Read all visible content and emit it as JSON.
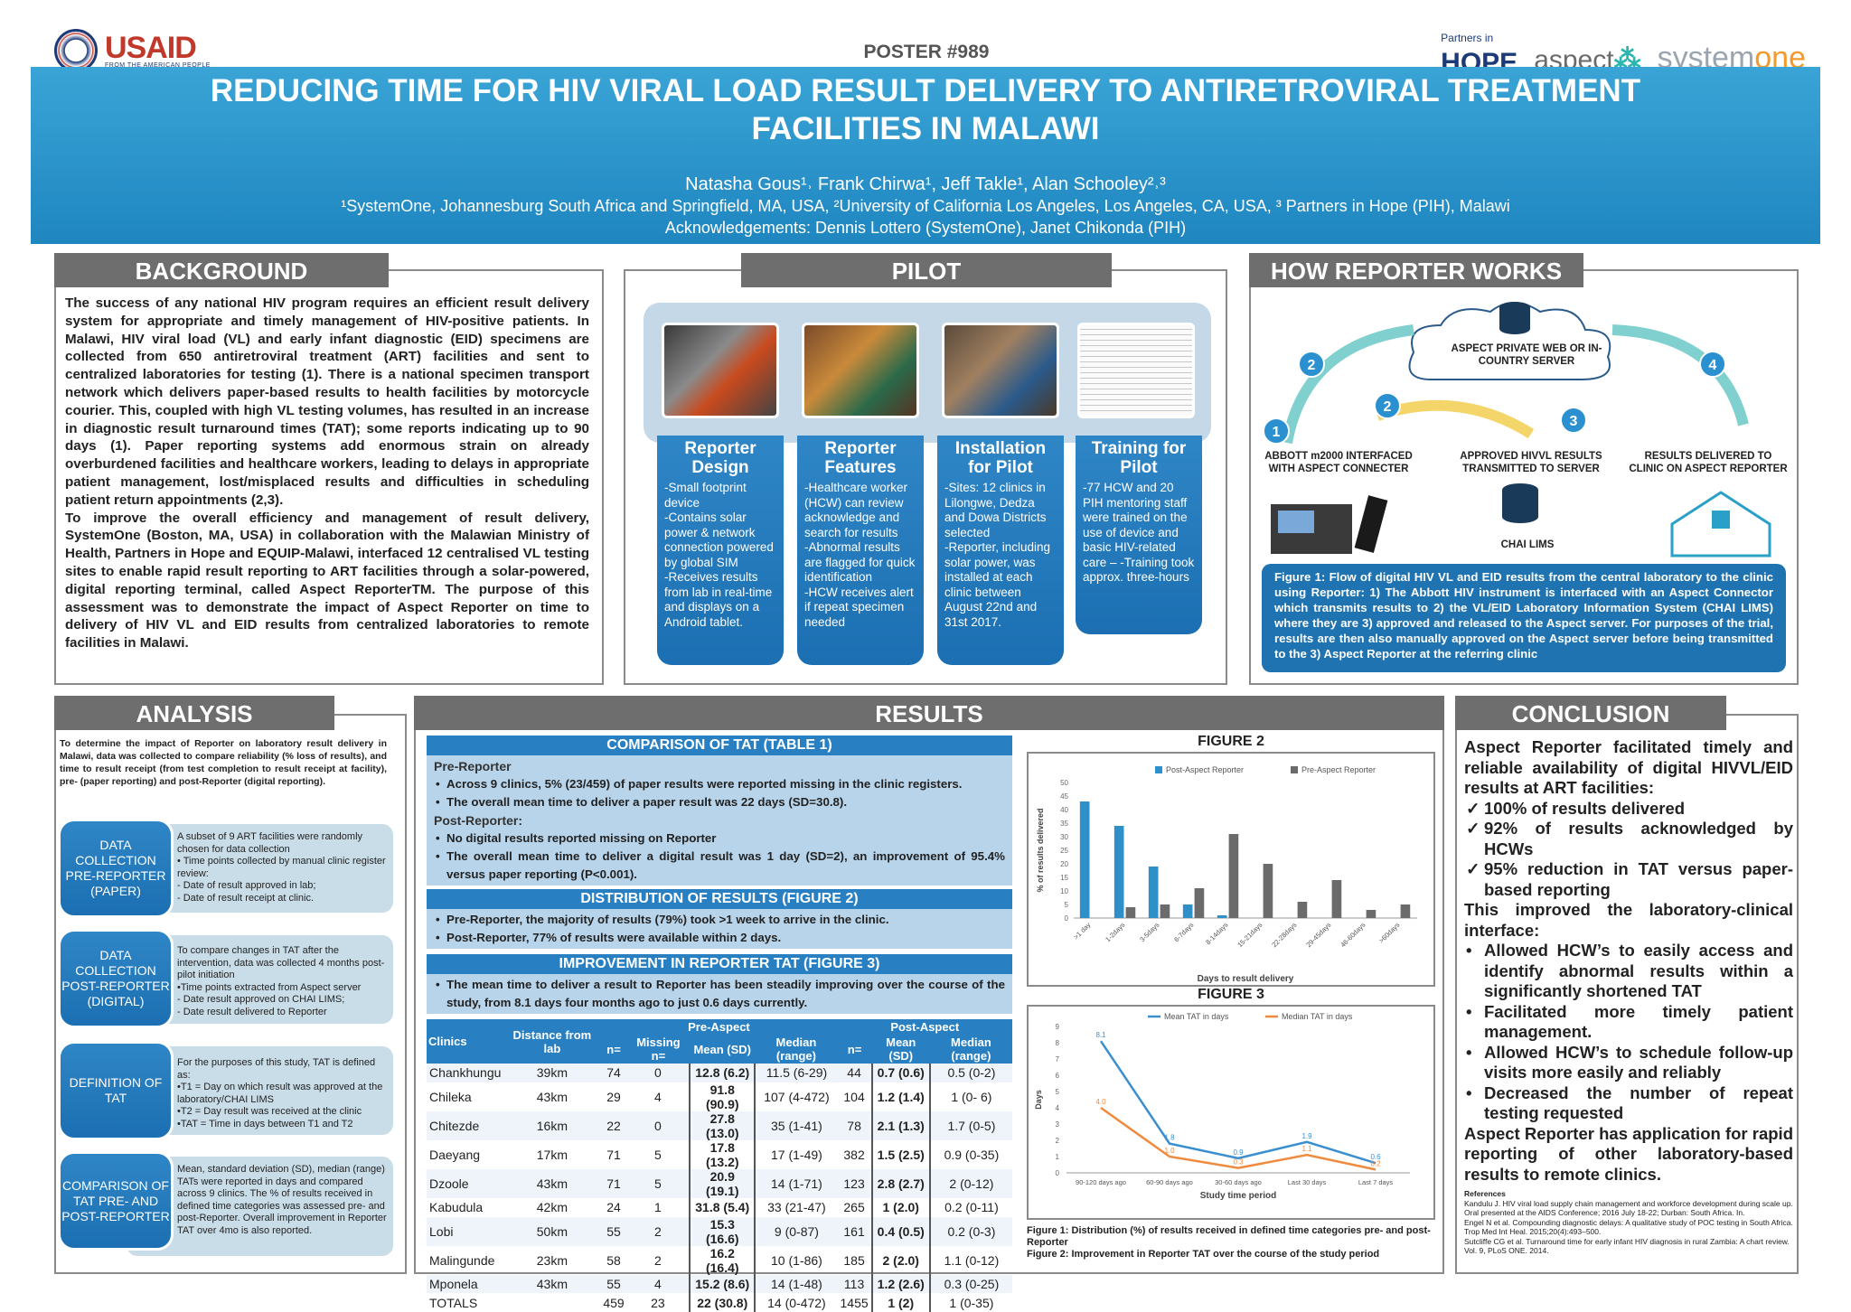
{
  "header": {
    "usaid_logo": "USAID",
    "usaid_tagline": "FROM THE AMERICAN PEOPLE",
    "poster_number": "POSTER #989",
    "pih_logo_small": "Partners in",
    "pih_logo": "HOPE",
    "aspect_logo": "aspect",
    "systemone_logo_a": "system",
    "systemone_logo_b": "one",
    "title_line1": "REDUCING TIME FOR HIV VIRAL LOAD RESULT DELIVERY TO ANTIRETROVIRAL TREATMENT",
    "title_line2": "FACILITIES IN MALAWI",
    "authors": "Natasha Gous¹˒ Frank Chirwa¹, Jeff Takle¹, Alan Schooley²˒³",
    "affiliations": "¹SystemOne, Johannesburg South Africa and Springfield, MA, USA, ²University of California Los Angeles, Los Angeles, CA, USA, ³ Partners in Hope (PIH), Malawi",
    "acknowledgements": "Acknowledgements: Dennis Lottero (SystemOne), Janet Chikonda (PIH)"
  },
  "background": {
    "heading": "BACKGROUND",
    "p1": "The success of any national HIV program requires an efficient result delivery system for appropriate and timely management of HIV-positive patients. In Malawi, HIV viral load (VL) and early infant diagnostic (EID) specimens are collected from 650 antiretroviral treatment (ART) facilities and sent to centralized laboratories for testing (1). There is a national specimen transport network which delivers paper-based results to health facilities by motorcycle courier. This, coupled with high VL testing volumes, has resulted in an increase in diagnostic result turnaround times (TAT); some reports indicating up to 90 days (1). Paper reporting systems add enormous strain on already overburdened facilities and healthcare workers, leading to delays in appropriate patient management, lost/misplaced results and difficulties in scheduling patient return appointments (2,3).",
    "p2": "To improve the overall efficiency and management of result delivery, SystemOne (Boston, MA, USA) in collaboration with the Malawian Ministry of Health, Partners in Hope and EQUIP-Malawi, interfaced 12 centralised VL testing sites to enable rapid result reporting to ART facilities through a solar-powered, digital reporting terminal, called Aspect ReporterTM. The purpose of this assessment was to demonstrate the impact of Aspect Reporter on time to delivery of HIV VL and EID results from centralized laboratories to remote facilities in Malawi."
  },
  "pilot": {
    "heading": "PILOT",
    "columns": [
      {
        "title": "Reporter Design",
        "text": "-Small footprint device\n-Contains solar power & network connection powered by global SIM\n-Receives results from lab in real-time and displays on a Android tablet."
      },
      {
        "title": "Reporter Features",
        "text": "-Healthcare worker (HCW) can review acknowledge and search for results\n-Abnormal results are flagged for quick identification\n-HCW receives alert if repeat specimen needed"
      },
      {
        "title": "Installation for Pilot",
        "text": "-Sites: 12 clinics in Lilongwe, Dedza and Dowa Districts selected\n-Reporter, including solar power, was installed at each clinic between August 22nd and 31st 2017."
      },
      {
        "title": "Training for Pilot",
        "text": "-77 HCW and 20 PIH mentoring staff were trained on the use of device and basic HIV-related care – -Training took approx. three-hours"
      }
    ]
  },
  "how": {
    "heading": "HOW REPORTER WORKS",
    "cloud": "ASPECT PRIVATE WEB OR IN-COUNTRY SERVER",
    "step1": "ABBOTT m2000 INTERFACED WITH ASPECT CONNECTER",
    "step3": "APPROVED HIVVL RESULTS TRANSMITTED TO SERVER",
    "step4": "RESULTS DELIVERED TO CLINIC ON ASPECT REPORTER",
    "chai": "CHAI LIMS",
    "n1": "1",
    "n2": "2",
    "n3": "3",
    "n4": "4",
    "caption": "Figure 1: Flow of digital HIV VL and EID results from the central laboratory to the clinic using Reporter: 1) The Abbott HIV instrument is interfaced with an Aspect Connector which transmits results to 2) the VL/EID Laboratory Information System (CHAI LIMS) where they are 3) approved and released to the Aspect server. For purposes of the trial, results are then also manually approved on the Aspect server before being transmitted to the 3) Aspect Reporter at the referring clinic"
  },
  "analysis": {
    "heading": "ANALYSIS",
    "intro": "To determine the impact of Reporter on laboratory result delivery in Malawi, data was collected to compare reliability (% loss of results), and time to result receipt (from test completion to result receipt at facility), pre- (paper reporting) and post-Reporter (digital reporting).",
    "rows": [
      {
        "label": "DATA COLLECTION PRE-REPORTER (PAPER)",
        "text": "A subset of 9 ART facilities were randomly chosen for data collection\n• Time points collected by manual clinic register review:\n  - Date of result approved in lab;\n  - Date of result receipt at clinic."
      },
      {
        "label": "DATA COLLECTION POST-REPORTER (DIGITAL)",
        "text": "To compare changes in TAT after the intervention, data was collected 4 months post-pilot initiation\n•Time points extracted from Aspect server\n  - Date result approved on CHAI LIMS;\n  - Date result delivered to Reporter"
      },
      {
        "label": "DEFINITION OF TAT",
        "text": "For the purposes of this study, TAT is defined as:\n•T1 = Day on which result was approved at the laboratory/CHAI LIMS\n•T2 = Day result was received at the clinic\n•TAT = Time in days between T1 and T2"
      },
      {
        "label": "COMPARISON OF TAT PRE- AND POST-REPORTER",
        "text": "Mean, standard deviation (SD), median (range) TATs were reported in days and compared across 9 clinics. The % of results received in defined time categories was assessed pre- and post-Reporter. Overall improvement in Reporter TAT over 4mo is also reported."
      }
    ]
  },
  "results": {
    "heading": "RESULTS",
    "comparison_title": "COMPARISON OF TAT (TABLE 1)",
    "pre_label": "Pre-Reporter",
    "pre_b1": "Across 9 clinics, 5% (23/459) of paper results were reported missing in the clinic registers.",
    "pre_b2": "The overall mean time to deliver a paper result was 22 days (SD=30.8).",
    "post_label": "Post-Reporter:",
    "post_b1": "No digital results reported missing on Reporter",
    "post_b2": "The overall mean time to deliver a digital result was 1 day (SD=2), an improvement of 95.4% versus paper reporting (P<0.001).",
    "dist_title": "DISTRIBUTION OF RESULTS (FIGURE 2)",
    "dist_b1": "Pre-Reporter, the majority of results (79%) took >1 week to arrive in the clinic.",
    "dist_b2": "Post-Reporter, 77% of results were available within 2 days.",
    "imp_title": "IMPROVEMENT IN REPORTER TAT (FIGURE 3)",
    "imp_b1": "The mean time to deliver a result to Reporter has been steadily improving over the course of the study, from 8.1 days four months ago to just 0.6 days currently.",
    "table_head": {
      "clinics": "Clinics",
      "distance": "Distance from lab",
      "pre": "Pre-Aspect",
      "post": "Post-Aspect",
      "n": "n=",
      "missing": "Missing n=",
      "mean": "Mean (SD)",
      "median": "Median (range)"
    },
    "table_rows": [
      [
        "Chankhungu",
        "39km",
        "74",
        "0",
        "12.8 (6.2)",
        "11.5 (6-29)",
        "44",
        "0.7 (0.6)",
        "0.5 (0-2)"
      ],
      [
        "Chileka",
        "43km",
        "29",
        "4",
        "91.8 (90.9)",
        "107 (4-472)",
        "104",
        "1.2 (1.4)",
        "1 (0- 6)"
      ],
      [
        "Chitezde",
        "16km",
        "22",
        "0",
        "27.8 (13.0)",
        "35 (1-41)",
        "78",
        "2.1 (1.3)",
        "1.7 (0-5)"
      ],
      [
        "Daeyang",
        "17km",
        "71",
        "5",
        "17.8 (13.2)",
        "17 (1-49)",
        "382",
        "1.5 (2.5)",
        "0.9 (0-35)"
      ],
      [
        "Dzoole",
        "43km",
        "71",
        "5",
        "20.9 (19.1)",
        "14 (1-71)",
        "123",
        "2.8 (2.7)",
        "2 (0-12)"
      ],
      [
        "Kabudula",
        "42km",
        "24",
        "1",
        "31.8 (5.4)",
        "33 (21-47)",
        "265",
        "1 (2.0)",
        "0.2 (0-11)"
      ],
      [
        "Lobi",
        "50km",
        "55",
        "2",
        "15.3 (16.6)",
        "9 (0-87)",
        "161",
        "0.4 (0.5)",
        "0.2 (0-3)"
      ],
      [
        "Malingunde",
        "23km",
        "58",
        "2",
        "16.2 (16.4)",
        "10 (1-86)",
        "185",
        "2 (2.0)",
        "1.1 (0-12)"
      ],
      [
        "Mponela",
        "43km",
        "55",
        "4",
        "15.2 (8.6)",
        "14 (1-48)",
        "113",
        "1.2 (2.6)",
        "0.3 (0-25)"
      ],
      [
        "TOTALS",
        "",
        "459",
        "23",
        "22 (30.8)",
        "14 (0-472)",
        "1455",
        "1 (2)",
        "1 (0-35)"
      ]
    ],
    "fig2_title": "FIGURE 2",
    "fig3_title": "FIGURE 3",
    "fig_caption1": "Figure 1: Distribution (%) of results received in defined time categories pre- and post-Reporter",
    "fig_caption2": "Figure 2: Improvement in Reporter TAT over the course of the study period"
  },
  "chart_data": [
    {
      "type": "bar",
      "title": "FIGURE 2",
      "xlabel": "Days to result delivery",
      "ylabel": "% of results delivered",
      "ylim": [
        0,
        50
      ],
      "yticks": [
        "0",
        "5",
        "10",
        "15",
        "20",
        "25",
        "30",
        "35",
        "40",
        "45",
        "50"
      ],
      "categories": [
        ">1 day",
        "1-2days",
        "3-5days",
        "6-7days",
        "8-14days",
        "15-21days",
        "22-28days",
        "29-45days",
        "46-60days",
        ">60days"
      ],
      "legend_position": "top",
      "series": [
        {
          "name": "Post-Aspect Reporter",
          "color": "#2f8fc9",
          "values": [
            43,
            34,
            19,
            5,
            1,
            0,
            0,
            0,
            0,
            0
          ]
        },
        {
          "name": "Pre-Aspect Reporter",
          "color": "#6b6b6b",
          "values": [
            0,
            4,
            5,
            11,
            31,
            20,
            6,
            14,
            3,
            5
          ]
        }
      ]
    },
    {
      "type": "line",
      "title": "FIGURE 3",
      "xlabel": "Study time period",
      "ylabel": "Days",
      "ylim": [
        0,
        9
      ],
      "yticks": [
        "0",
        "1",
        "2",
        "3",
        "4",
        "5",
        "6",
        "7",
        "8",
        "9"
      ],
      "categories": [
        "90-120 days ago",
        "60-90 days ago",
        "30-60 days ago",
        "Last 30 days",
        "Last 7 days"
      ],
      "legend_position": "top",
      "series": [
        {
          "name": "Mean TAT in days",
          "color": "#3a8fd0",
          "values": [
            8.1,
            1.8,
            0.9,
            1.9,
            0.6
          ],
          "labels": [
            "8.1",
            "1.8",
            "0.9",
            "1.9",
            "0.6"
          ]
        },
        {
          "name": "Median TAT in days",
          "color": "#f08a3e",
          "values": [
            4.0,
            1.0,
            0.3,
            1.1,
            0.2
          ],
          "labels": [
            "4.0",
            "1.0",
            "0.3",
            "1.1",
            "0.2"
          ]
        }
      ]
    }
  ],
  "conclusion": {
    "heading": "CONCLUSION",
    "intro": "Aspect Reporter facilitated timely and reliable availability of digital HIVVL/EID results at ART facilities:",
    "checks": [
      "100% of results delivered",
      "92% of results acknowledged by HCWs",
      "95% reduction in TAT versus paper-based reporting"
    ],
    "mid": "This improved the laboratory-clinical interface:",
    "bullets": [
      "Allowed HCW’s to easily access and identify abnormal results within a significantly shortened TAT",
      "Facilitated more timely patient management.",
      "Allowed HCW’s to schedule follow-up visits more easily and reliably",
      "Decreased the number of repeat testing requested"
    ],
    "closing": "Aspect Reporter has application for rapid reporting of other laboratory-based results to remote clinics.",
    "refs_title": "References",
    "refs": "Kandulu J. HIV viral load supply chain management and workforce development during scale up. Oral presented at the AIDS Conference; 2016 July 18-22; Durban: South Africa. In.\nEngel N et al. Compounding diagnostic delays: A qualitative study of POC testing in South Africa. Trop Med Int Heal. 2015;20(4):493–500.\nSutcliffe CG et al. Turnaround time for early infant HIV diagnosis in rural Zambia: A chart review. Vol. 9, PLoS ONE. 2014."
  }
}
